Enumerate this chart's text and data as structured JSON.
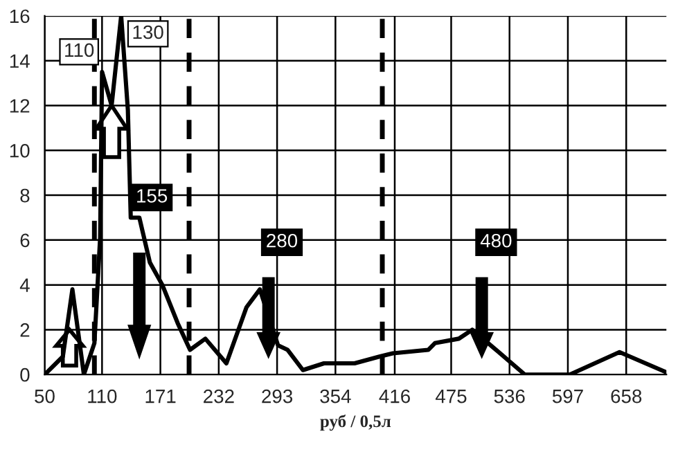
{
  "chart_data": {
    "type": "line",
    "xlabel": "руб / 0,5л",
    "x": [
      50,
      69,
      79,
      91,
      102,
      108,
      110,
      120,
      130,
      137,
      140,
      149,
      160,
      173,
      189,
      202,
      218,
      240,
      261,
      275,
      294,
      304,
      320,
      342,
      367,
      374,
      400,
      414,
      451,
      458,
      483,
      497,
      522,
      552,
      599,
      651,
      700
    ],
    "series": [
      {
        "color": "#000000",
        "values": [
          0,
          0.8,
          3.8,
          0,
          1.4,
          6.1,
          13.5,
          12,
          16,
          11.8,
          7,
          7,
          5,
          4,
          2.3,
          1.1,
          1.6,
          0.5,
          3,
          3.8,
          1.3,
          1.1,
          0.2,
          0.5,
          0.5,
          0.5,
          0.8,
          0.95,
          1.1,
          1.4,
          1.6,
          2.0,
          1.1,
          0,
          0,
          1.0,
          0.1
        ]
      }
    ],
    "xlim": [
      50,
      700
    ],
    "ylim": [
      0,
      16
    ],
    "xticks": [
      50,
      110,
      171,
      232,
      293,
      354,
      416,
      475,
      536,
      597,
      658
    ],
    "yticks": [
      0,
      2,
      4,
      6,
      8,
      10,
      12,
      14,
      16
    ],
    "grid": true,
    "marker": "none",
    "line_style": "solid",
    "ref_lines": [
      {
        "axis": "x",
        "value": 102,
        "color": "#000000",
        "line_style": "dashed"
      },
      {
        "axis": "x",
        "value": 201,
        "color": "#000000",
        "line_style": "dashed"
      },
      {
        "axis": "x",
        "value": 403,
        "color": "#000000",
        "line_style": "dashed"
      }
    ],
    "annotations": [
      "110",
      "130",
      "155",
      "280",
      "480"
    ]
  }
}
